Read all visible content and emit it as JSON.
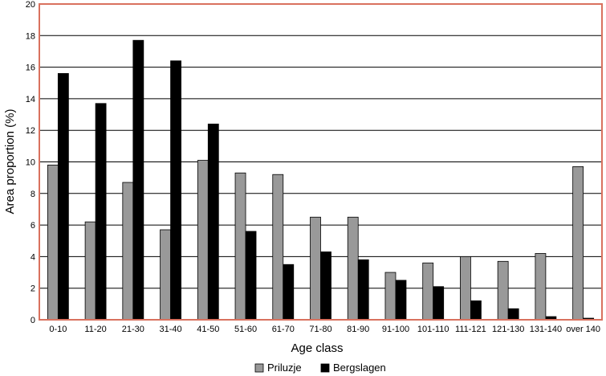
{
  "chart_data": {
    "type": "bar",
    "xlabel": "Age class",
    "ylabel": "Area proportion  (%)",
    "ylim": [
      0,
      20
    ],
    "yticks": [
      0,
      2,
      4,
      6,
      8,
      10,
      12,
      14,
      16,
      18,
      20
    ],
    "grid": true,
    "legend_position": "bottom",
    "categories": [
      "0-10",
      "11-20",
      "21-30",
      "31-40",
      "41-50",
      "51-60",
      "61-70",
      "71-80",
      "81-90",
      "91-100",
      "101-110",
      "111-121",
      "121-130",
      "131-140",
      "over 140"
    ],
    "series": [
      {
        "name": "Priluzje",
        "color": "#999999",
        "values": [
          9.8,
          6.2,
          8.7,
          5.7,
          10.1,
          9.3,
          9.2,
          6.5,
          6.5,
          3.0,
          3.6,
          4.0,
          3.7,
          4.2,
          9.7
        ]
      },
      {
        "name": "Bergslagen",
        "color": "#000000",
        "values": [
          15.6,
          13.7,
          17.7,
          16.4,
          12.4,
          5.6,
          3.5,
          4.3,
          3.8,
          2.5,
          2.1,
          1.2,
          0.7,
          0.2,
          0.1
        ]
      }
    ],
    "plot_border_color": "#d9715e"
  }
}
